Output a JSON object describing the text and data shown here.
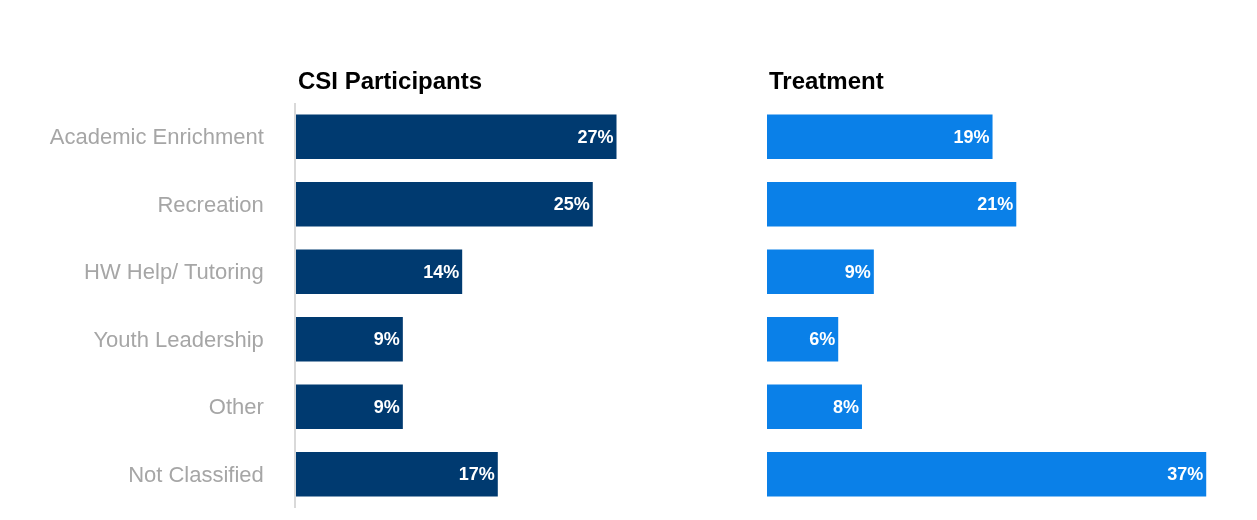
{
  "chart_data": [
    {
      "type": "bar",
      "orientation": "horizontal",
      "title": "CSI Participants",
      "categories": [
        "Academic Enrichment",
        "Recreation",
        "HW Help/ Tutoring",
        "Youth Leadership",
        "Other",
        "Not Classified"
      ],
      "values": [
        27,
        25,
        14,
        9,
        9,
        17
      ],
      "value_labels": [
        "27%",
        "25%",
        "14%",
        "9%",
        "9%",
        "17%"
      ],
      "color": "#003a70",
      "tick_labels": "y"
    },
    {
      "type": "bar",
      "orientation": "horizontal",
      "title": "Treatment",
      "categories": [
        null,
        null,
        null,
        null,
        null,
        null
      ],
      "values": [
        19,
        21,
        9,
        6,
        8,
        37
      ],
      "value_labels": [
        "19%",
        "21%",
        "9%",
        "6%",
        "8%",
        "37%"
      ],
      "color": "#0a80e8"
    }
  ]
}
